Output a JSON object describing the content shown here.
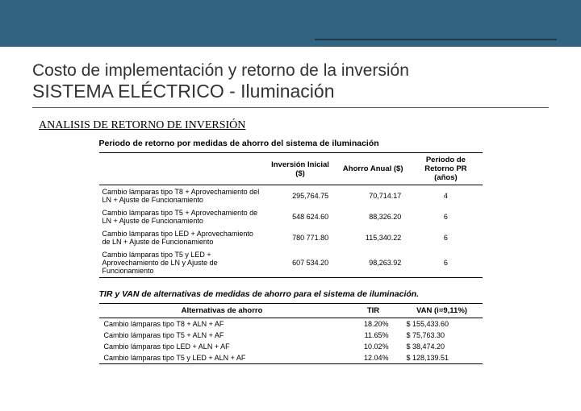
{
  "header": {
    "title1": "Costo de implementación y retorno de la inversión",
    "title2": "SISTEMA ELÉCTRICO - Iluminación",
    "subtitle": "ANALISIS DE RETORNO DE INVERSIÓN"
  },
  "table1": {
    "title": "Periodo de retorno por medidas de ahorro del sistema de iluminación",
    "headers": {
      "blank": "",
      "inv": "Inversión Inicial ($)",
      "ahorro": "Ahorro Anual ($)",
      "pr": "Periodo de Retorno  PR (años)"
    },
    "rows": [
      {
        "desc": "Cambio lámparas tipo T8 + Aprovechamiento del LN + Ajuste de Funcionamiento",
        "inv": "295,764.75",
        "ahorro": "70,714.17",
        "pr": "4"
      },
      {
        "desc": "Cambio lámparas tipo T5 + Aprovechamiento de LN + Ajuste de Funcionamiento",
        "inv": "548 624.60",
        "ahorro": "88,326.20",
        "pr": "6"
      },
      {
        "desc": "Cambio lámparas tipo LED + Aprovechamiento de LN + Ajuste de Funcionamiento",
        "inv": "780 771.80",
        "ahorro": "115,340.22",
        "pr": "6"
      },
      {
        "desc": "Cambio lámparas tipo T5 y LED + Aprovechamiento de LN y Ajuste de Funcionamiento",
        "inv": "607 534.20",
        "ahorro": "98,263.92",
        "pr": "6"
      }
    ]
  },
  "table2": {
    "title": "TIR y VAN de alternativas de medidas de ahorro para el sistema de iluminación.",
    "headers": {
      "alt": "Alternativas de ahorro",
      "tir": "TIR",
      "van": "VAN (i=9,11%)"
    },
    "rows": [
      {
        "alt": "Cambio lámparas tipo T8 + ALN + AF",
        "tir": "18.20%",
        "van": "$ 155,433.60"
      },
      {
        "alt": "Cambio lámparas tipo T5 + ALN + AF",
        "tir": "11.65%",
        "van": "$   75,763.30"
      },
      {
        "alt": "Cambio lámparas tipo LED + ALN + AF",
        "tir": "10.02%",
        "van": "$   38,474.20"
      },
      {
        "alt": "Cambio lámparas tipo T5 y LED + ALN + AF",
        "tir": "12.04%",
        "van": "$ 128,139.51"
      }
    ]
  }
}
